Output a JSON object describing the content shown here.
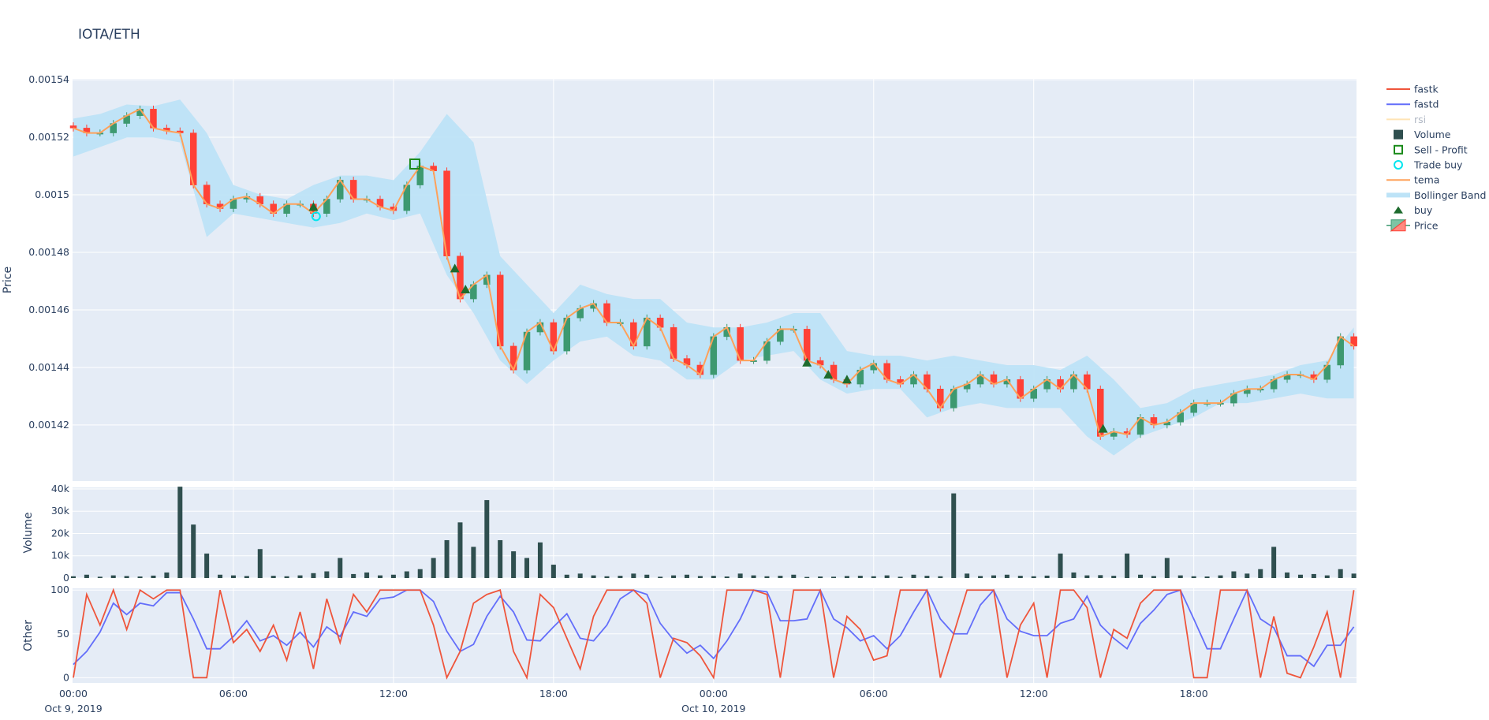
{
  "title": "IOTA/ETH",
  "colors": {
    "plot_bg": "#e5ecf6",
    "grid": "#ffffff",
    "increasing": "#3d9970",
    "decreasing": "#ff4136",
    "tema": "#ffa15a",
    "bollinger": "#bde3f7",
    "volume": "#2f4f4f",
    "fastk": "#ef553b",
    "fastd": "#636efa",
    "rsi": "#ffe4b5",
    "buy": "#1e6b2e",
    "sell": "#1a8a1a",
    "trade_buy": "#00e5ee"
  },
  "legend": {
    "placement": "right",
    "items": [
      {
        "label": "fastk",
        "icon": "line",
        "color": "#ef553b"
      },
      {
        "label": "fastd",
        "icon": "line",
        "color": "#636efa"
      },
      {
        "label": "rsi",
        "icon": "line",
        "color": "#ffe4b5",
        "hidden": true
      },
      {
        "label": "Volume",
        "icon": "square",
        "color": "#2f4f4f"
      },
      {
        "label": "Sell - Profit",
        "icon": "square-open",
        "color": "#1a8a1a"
      },
      {
        "label": "Trade buy",
        "icon": "circle-open",
        "color": "#00e5ee"
      },
      {
        "label": "tema",
        "icon": "line",
        "color": "#ffa15a"
      },
      {
        "label": "Bollinger Band",
        "icon": "band",
        "color": "#bde3f7"
      },
      {
        "label": "buy",
        "icon": "triangle-up",
        "color": "#1e6b2e"
      },
      {
        "label": "Price",
        "icon": "candle",
        "color": "#3d9970"
      }
    ]
  },
  "chart_data": [
    {
      "type": "candlestick",
      "panel": "Price",
      "ylabel": "Price",
      "ylim": [
        0.0014005,
        0.0015403
      ],
      "yticks": [
        "0.00142",
        "0.00144",
        "0.00146",
        "0.00148",
        "0.0015",
        "0.00152",
        "0.00154"
      ],
      "ytick_values": [
        0.00142,
        0.00144,
        0.00146,
        0.00148,
        0.0015,
        0.00152,
        0.00154
      ],
      "grid": true,
      "x_start": "2019-10-09 00:00",
      "x_step_minutes": 30,
      "close": [
        0.0015232,
        0.0015215,
        0.0015215,
        0.0015248,
        0.0015275,
        0.0015298,
        0.0015232,
        0.0015222,
        0.0015215,
        0.0015034,
        0.0014968,
        0.0014952,
        0.0014985,
        0.0014994,
        0.0014968,
        0.0014935,
        0.0014968,
        0.0014968,
        0.0014935,
        0.0014985,
        0.0015051,
        0.0014985,
        0.0014985,
        0.0014958,
        0.0014945,
        0.0015034,
        0.00151,
        0.0015083,
        0.0014787,
        0.0014638,
        0.0014688,
        0.0014721,
        0.0014474,
        0.0014391,
        0.0014523,
        0.0014556,
        0.0014457,
        0.0014572,
        0.0014605,
        0.0014622,
        0.0014556,
        0.0014556,
        0.0014474,
        0.0014572,
        0.0014539,
        0.0014431,
        0.0014408,
        0.0014375,
        0.0014507,
        0.0014539,
        0.0014424,
        0.0014424,
        0.001449,
        0.0014533,
        0.0014533,
        0.0014424,
        0.0014408,
        0.0014358,
        0.0014342,
        0.0014391,
        0.0014414,
        0.0014358,
        0.0014342,
        0.0014375,
        0.0014325,
        0.0014259,
        0.0014325,
        0.0014342,
        0.0014375,
        0.0014342,
        0.0014358,
        0.0014292,
        0.0014325,
        0.0014358,
        0.0014325,
        0.0014375,
        0.0014325,
        0.001416,
        0.0014177,
        0.0014167,
        0.0014226,
        0.00142,
        0.001421,
        0.0014243,
        0.0014276,
        0.0014276,
        0.0014276,
        0.0014309,
        0.0014325,
        0.0014325,
        0.0014358,
        0.0014375,
        0.0014375,
        0.0014358,
        0.0014408,
        0.0014507,
        0.0014474
      ],
      "tema": "same as close",
      "bollinger_step_minutes": 60,
      "bollinger_upper": [
        0.0015265,
        0.0015281,
        0.0015314,
        0.0015308,
        0.0015331,
        0.0015215,
        0.0015034,
        0.0015001,
        0.0014985,
        0.0015034,
        0.0015067,
        0.0015067,
        0.0015051,
        0.0015149,
        0.0015281,
        0.0015182,
        0.0014787,
        0.0014688,
        0.0014589,
        0.0014688,
        0.0014655,
        0.0014638,
        0.0014638,
        0.0014556,
        0.0014539,
        0.0014539,
        0.0014556,
        0.0014589,
        0.0014589,
        0.0014457,
        0.0014441,
        0.0014441,
        0.0014424,
        0.0014441,
        0.0014424,
        0.0014408,
        0.0014408,
        0.0014391,
        0.0014441,
        0.0014358,
        0.0014259,
        0.0014276,
        0.0014325,
        0.0014342,
        0.0014358,
        0.0014375,
        0.0014408,
        0.0014424,
        0.0014539
      ],
      "bollinger_lower": [
        0.0015133,
        0.0015166,
        0.0015199,
        0.0015199,
        0.0015182,
        0.0014853,
        0.0014935,
        0.0014919,
        0.0014902,
        0.0014886,
        0.0014902,
        0.0014935,
        0.0014912,
        0.0014935,
        0.0014721,
        0.0014589,
        0.0014424,
        0.0014342,
        0.0014424,
        0.001449,
        0.0014507,
        0.0014441,
        0.0014424,
        0.0014358,
        0.0014358,
        0.0014424,
        0.0014441,
        0.0014457,
        0.0014358,
        0.0014309,
        0.0014325,
        0.0014325,
        0.0014226,
        0.0014259,
        0.0014276,
        0.0014259,
        0.0014259,
        0.0014259,
        0.001416,
        0.0014094,
        0.001416,
        0.0014193,
        0.0014226,
        0.0014276,
        0.0014276,
        0.0014292,
        0.0014309,
        0.0014292,
        0.0014292
      ],
      "buy_signals": [
        {
          "hours": 9.0,
          "price": 0.0014958
        },
        {
          "hours": 14.3,
          "price": 0.0014744
        },
        {
          "hours": 14.7,
          "price": 0.0014671
        },
        {
          "hours": 27.5,
          "price": 0.0014417
        },
        {
          "hours": 28.3,
          "price": 0.0014375
        },
        {
          "hours": 29.0,
          "price": 0.0014358
        },
        {
          "hours": 38.6,
          "price": 0.0014187
        }
      ],
      "trade_buys": [
        {
          "hours": 9.1,
          "price": 0.0014925
        }
      ],
      "sell_profit": [
        {
          "hours": 12.8,
          "price": 0.0015107
        }
      ]
    },
    {
      "type": "bar",
      "panel": "Volume",
      "ylabel": "Volume",
      "ylim": [
        0,
        40700
      ],
      "yticks": [
        "0",
        "10k",
        "20k",
        "30k",
        "40k"
      ],
      "ytick_values": [
        0,
        10000,
        20000,
        30000,
        40000
      ],
      "x_step_minutes": 30,
      "values": [
        800,
        1500,
        600,
        1200,
        900,
        700,
        1100,
        2500,
        41000,
        24000,
        11000,
        1500,
        1200,
        900,
        13000,
        1000,
        800,
        1200,
        2200,
        3000,
        9000,
        1800,
        2500,
        1200,
        1500,
        3000,
        4000,
        9000,
        17000,
        25000,
        14000,
        35000,
        17000,
        12000,
        9000,
        16000,
        6000,
        1500,
        2000,
        1200,
        800,
        1000,
        2000,
        1500,
        600,
        1200,
        1500,
        900,
        1000,
        700,
        2000,
        1200,
        800,
        1000,
        1500,
        500,
        700,
        600,
        900,
        1000,
        800,
        1200,
        600,
        1500,
        1000,
        800,
        38000,
        2000,
        900,
        1200,
        1500,
        1000,
        800,
        1100,
        11000,
        2500,
        1200,
        1300,
        1000,
        11000,
        1500,
        900,
        9000,
        1200,
        800,
        700,
        1200,
        3000,
        2000,
        4000,
        14000,
        2500,
        1500,
        1800,
        1200,
        4000,
        2000
      ]
    },
    {
      "type": "line",
      "panel": "Other",
      "ylabel": "Other",
      "ylim": [
        -6,
        102
      ],
      "yticks": [
        "0",
        "50",
        "100"
      ],
      "ytick_values": [
        0,
        50,
        100
      ],
      "x_step_minutes": 30,
      "series": [
        {
          "name": "fastk",
          "values": [
            0,
            95,
            60,
            100,
            55,
            100,
            90,
            100,
            100,
            0,
            0,
            100,
            40,
            55,
            30,
            60,
            20,
            75,
            10,
            90,
            40,
            95,
            75,
            100,
            100,
            100,
            100,
            60,
            0,
            30,
            85,
            95,
            100,
            30,
            0,
            95,
            80,
            45,
            10,
            70,
            100,
            100,
            100,
            85,
            0,
            45,
            40,
            25,
            0,
            100,
            100,
            100,
            95,
            0,
            100,
            100,
            100,
            0,
            70,
            55,
            20,
            25,
            100,
            100,
            100,
            0,
            50,
            100,
            100,
            100,
            0,
            60,
            85,
            0,
            100,
            100,
            80,
            0,
            55,
            45,
            85,
            100,
            100,
            100,
            0,
            0,
            100,
            100,
            100,
            0,
            70,
            5,
            0,
            35,
            75,
            0,
            100
          ]
        },
        {
          "name": "fastd",
          "values": [
            15,
            30,
            52,
            85,
            72,
            85,
            82,
            97,
            97,
            67,
            33,
            33,
            47,
            65,
            42,
            48,
            37,
            52,
            35,
            58,
            47,
            75,
            70,
            90,
            92,
            100,
            100,
            87,
            53,
            30,
            38,
            70,
            93,
            75,
            43,
            42,
            58,
            73,
            45,
            42,
            60,
            90,
            100,
            95,
            62,
            43,
            28,
            37,
            22,
            42,
            67,
            100,
            98,
            65,
            65,
            67,
            100,
            67,
            57,
            42,
            48,
            33,
            48,
            75,
            100,
            67,
            50,
            50,
            83,
            100,
            67,
            53,
            48,
            48,
            62,
            67,
            93,
            60,
            45,
            33,
            62,
            77,
            95,
            100,
            67,
            33,
            33,
            67,
            100,
            67,
            57,
            25,
            25,
            13,
            37,
            37,
            58
          ]
        }
      ]
    }
  ],
  "xaxis": {
    "range_hours": [
      0,
      48.1
    ],
    "ticks": [
      {
        "hours": 0,
        "label": "00:00",
        "date": "Oct 9, 2019"
      },
      {
        "hours": 6,
        "label": "06:00",
        "date": ""
      },
      {
        "hours": 12,
        "label": "12:00",
        "date": ""
      },
      {
        "hours": 18,
        "label": "18:00",
        "date": ""
      },
      {
        "hours": 24,
        "label": "00:00",
        "date": "Oct 10, 2019"
      },
      {
        "hours": 30,
        "label": "06:00",
        "date": ""
      },
      {
        "hours": 36,
        "label": "12:00",
        "date": ""
      },
      {
        "hours": 42,
        "label": "18:00",
        "date": ""
      }
    ]
  }
}
